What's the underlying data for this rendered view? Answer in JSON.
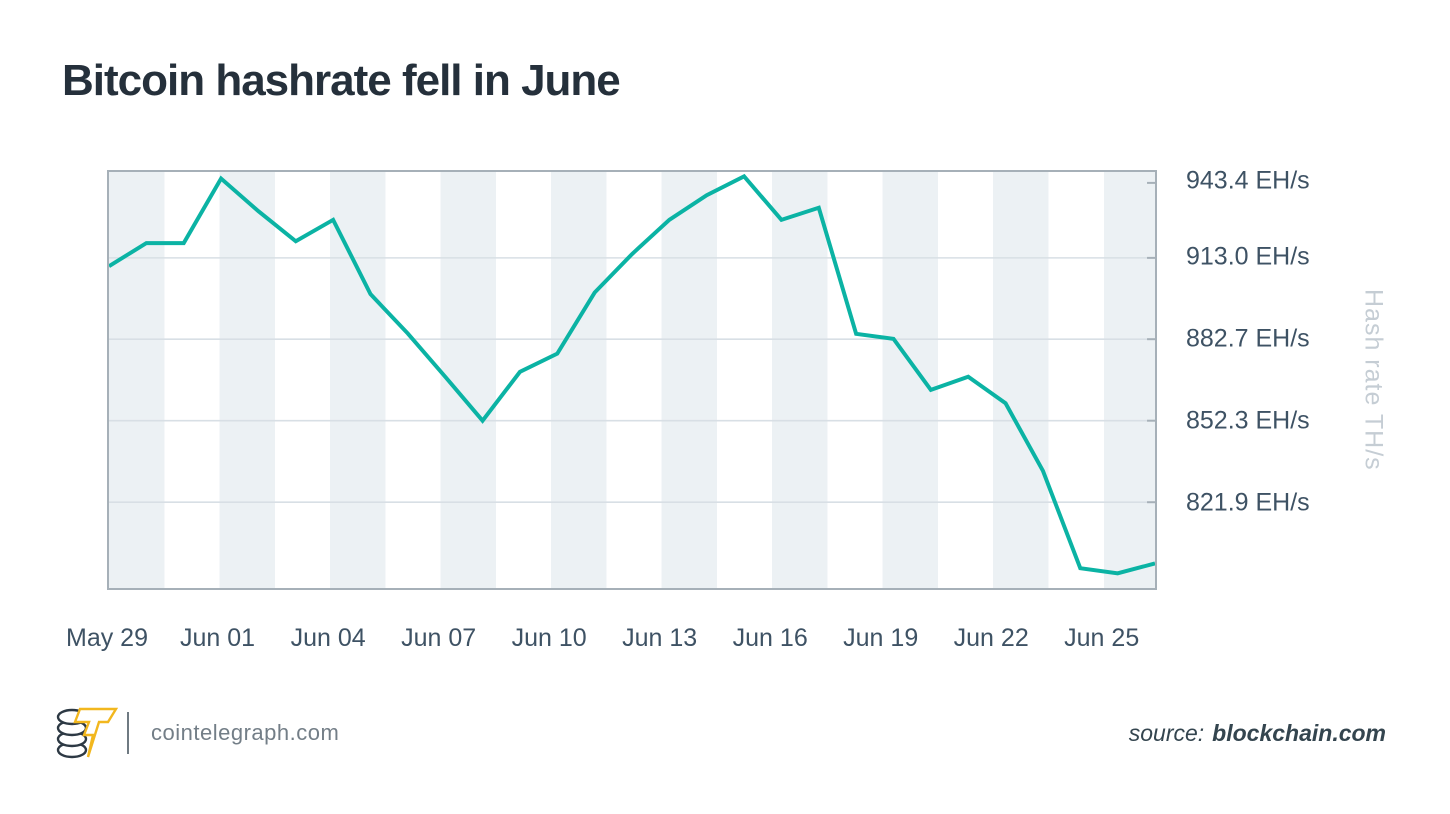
{
  "page": {
    "title": "Bitcoin hashrate fell in June"
  },
  "chart_data": {
    "type": "line",
    "title": "Bitcoin hashrate fell in June",
    "series_name": "Bitcoin hashrate",
    "unit": "EH/s",
    "ylabel": "Hash rate TH/s",
    "grid": "horizontal gridlines at labeled ticks, vertical alternating stripe bands",
    "legend": "none",
    "x": [
      "May 29",
      "May 30",
      "May 31",
      "Jun 01",
      "Jun 02",
      "Jun 03",
      "Jun 04",
      "Jun 05",
      "Jun 06",
      "Jun 07",
      "Jun 08",
      "Jun 09",
      "Jun 10",
      "Jun 11",
      "Jun 12",
      "Jun 13",
      "Jun 14",
      "Jun 15",
      "Jun 16",
      "Jun 17",
      "Jun 18",
      "Jun 19",
      "Jun 20",
      "Jun 21",
      "Jun 22",
      "Jun 23",
      "Jun 24",
      "Jun 25",
      "Jun 26"
    ],
    "values": [
      909.9,
      918.5,
      918.5,
      942.6,
      930.4,
      919.2,
      927.2,
      899.5,
      884.8,
      868.7,
      852.3,
      870.5,
      877.3,
      900.1,
      914.4,
      927.2,
      936.4,
      943.4,
      927.2,
      931.7,
      884.7,
      882.8,
      863.8,
      868.7,
      858.8,
      833.6,
      797.3,
      795.4,
      799.1
    ],
    "y_ticks": [
      943.4,
      913.0,
      882.7,
      852.3,
      821.9
    ],
    "x_tick_labels": [
      "May 29",
      "Jun 01",
      "Jun 04",
      "Jun 07",
      "Jun 10",
      "Jun 13",
      "Jun 16",
      "Jun 19",
      "Jun 22",
      "Jun 25"
    ],
    "ylim": [
      789.9,
      945.0
    ]
  },
  "footer": {
    "site": "cointelegraph.com",
    "source_label": "source:",
    "source_value": "blockchain.com"
  },
  "colors": {
    "accent": "#0BB3A4",
    "stripe": "#ECF1F4",
    "grid": "#D8DFE5",
    "plot_border": "#A6B0B8",
    "title_text": "#25303B",
    "axis_text": "#3E5264",
    "muted_text": "#C5CDD4",
    "footer_text": "#737E87",
    "source_text": "#34454F",
    "divider": "#6F7A82",
    "logo_yellow": "#F2B71E",
    "logo_dark": "#2D3944",
    "background": "#FFFFFF"
  }
}
